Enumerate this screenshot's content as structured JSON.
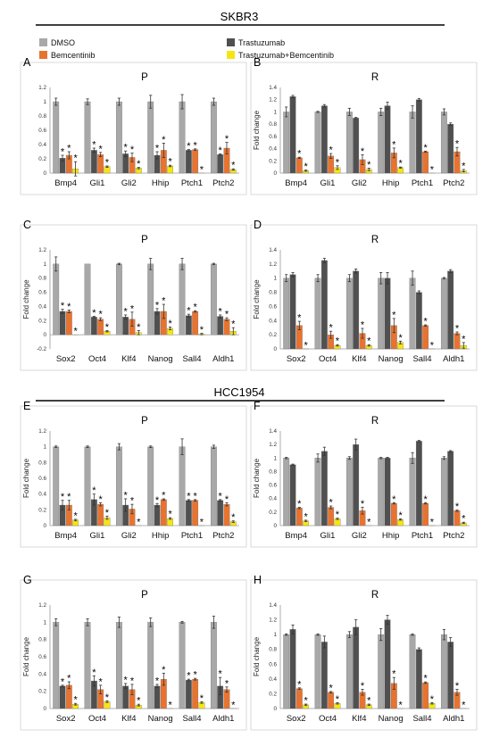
{
  "sections": [
    {
      "title": "SKBR3"
    },
    {
      "title": "HCC1954"
    }
  ],
  "legend": {
    "items": [
      {
        "label": "DMSO",
        "color": "#a8a8a8"
      },
      {
        "label": "Trastuzumab",
        "color": "#505050"
      },
      {
        "label": "Bemcentinib",
        "color": "#e8732f"
      },
      {
        "label": "Trastuzumab+Bemcentinib",
        "color": "#f5e612"
      }
    ]
  },
  "chart_data": [
    {
      "panel": "A",
      "title": "P",
      "type": "bar",
      "ylabel": "",
      "categories": [
        "Bmp4",
        "Gli1",
        "Gli2",
        "Hhip",
        "Ptch1",
        "Ptch2"
      ],
      "ylim": [
        0,
        1.2
      ],
      "yticks": [
        "0",
        "0.2",
        "0.4",
        "0.6",
        "0.8",
        "1",
        "1.2"
      ],
      "series": [
        {
          "name": "DMSO",
          "values": [
            1.0,
            1.0,
            1.0,
            1.0,
            1.0,
            1.0
          ]
        },
        {
          "name": "Trastuzumab",
          "values": [
            0.21,
            0.32,
            0.27,
            0.25,
            0.32,
            0.26
          ]
        },
        {
          "name": "Bemcentinib",
          "values": [
            0.25,
            0.26,
            0.22,
            0.32,
            0.33,
            0.35
          ]
        },
        {
          "name": "Trastuzumab+Bemcentinib",
          "values": [
            0.06,
            0.09,
            0.07,
            0.1,
            0.0,
            0.05
          ]
        }
      ],
      "errors": [
        [
          0.05,
          0.04,
          0.05,
          0.1
        ],
        [
          0.04,
          0.03,
          0.03,
          0.01
        ],
        [
          0.05,
          0.04,
          0.06,
          0.01
        ],
        [
          0.09,
          0.05,
          0.1,
          0.01
        ],
        [
          0.1,
          0.01,
          0.01,
          0.0
        ],
        [
          0.05,
          0.01,
          0.08,
          0.01
        ]
      ],
      "stars": [
        [
          false,
          true,
          true,
          true
        ],
        [
          false,
          true,
          true,
          true
        ],
        [
          false,
          true,
          true,
          true
        ],
        [
          false,
          true,
          true,
          true
        ],
        [
          false,
          true,
          true,
          true
        ],
        [
          false,
          true,
          true,
          true
        ]
      ]
    },
    {
      "panel": "B",
      "title": "R",
      "type": "bar",
      "ylabel": "Fold change",
      "categories": [
        "Bmp4",
        "Gli1",
        "Gli2",
        "Hhip",
        "Ptch1",
        "Ptch2"
      ],
      "ylim": [
        0,
        1.4
      ],
      "yticks": [
        "0",
        "0.2",
        "0.4",
        "0.6",
        "0.8",
        "1",
        "1.2",
        "1.4"
      ],
      "series": [
        {
          "name": "DMSO",
          "values": [
            1.0,
            1.0,
            1.0,
            1.0,
            1.0,
            1.0
          ]
        },
        {
          "name": "Trastuzumab",
          "values": [
            1.25,
            1.1,
            0.9,
            1.1,
            1.2,
            0.8
          ]
        },
        {
          "name": "Bemcentinib",
          "values": [
            0.25,
            0.28,
            0.22,
            0.33,
            0.35,
            0.35
          ]
        },
        {
          "name": "Trastuzumab+Bemcentinib",
          "values": [
            0.04,
            0.09,
            0.06,
            0.09,
            0.0,
            0.04
          ]
        }
      ],
      "errors": [
        [
          0.08,
          0.02,
          0.01,
          0.01
        ],
        [
          0.01,
          0.02,
          0.04,
          0.03
        ],
        [
          0.06,
          0.01,
          0.08,
          0.02
        ],
        [
          0.06,
          0.06,
          0.08,
          0.01
        ],
        [
          0.1,
          0.02,
          0.01,
          0.0
        ],
        [
          0.05,
          0.02,
          0.07,
          0.02
        ]
      ],
      "stars": [
        [
          false,
          false,
          true,
          true
        ],
        [
          false,
          false,
          true,
          true
        ],
        [
          false,
          false,
          true,
          true
        ],
        [
          false,
          false,
          true,
          true
        ],
        [
          false,
          false,
          true,
          true
        ],
        [
          false,
          false,
          true,
          true
        ]
      ]
    },
    {
      "panel": "C",
      "title": "P",
      "type": "bar",
      "ylabel": "Fold change",
      "categories": [
        "Sox2",
        "Oct4",
        "Klf4",
        "Nanog",
        "Sall4",
        "Aldh1"
      ],
      "ylim": [
        -0.2,
        1.2
      ],
      "yticks": [
        "-0.2",
        "0",
        "0.2",
        "0.4",
        "0.6",
        "0.8",
        "1",
        "1.2"
      ],
      "series": [
        {
          "name": "DMSO",
          "values": [
            1.0,
            1.0,
            1.0,
            1.0,
            1.0,
            1.0
          ]
        },
        {
          "name": "Trastuzumab",
          "values": [
            0.33,
            0.25,
            0.25,
            0.33,
            0.27,
            0.26
          ]
        },
        {
          "name": "Bemcentinib",
          "values": [
            0.33,
            0.22,
            0.22,
            0.33,
            0.33,
            0.22
          ]
        },
        {
          "name": "Trastuzumab+Bemcentinib",
          "values": [
            0.0,
            0.05,
            0.03,
            0.09,
            0.01,
            0.05
          ]
        }
      ],
      "errors": [
        [
          0.1,
          0.03,
          0.02,
          0.0
        ],
        [
          0.0,
          0.01,
          0.02,
          0.01
        ],
        [
          0.01,
          0.03,
          0.1,
          0.03
        ],
        [
          0.08,
          0.04,
          0.1,
          0.02
        ],
        [
          0.08,
          0.02,
          0.01,
          0.01
        ],
        [
          0.01,
          0.02,
          0.02,
          0.05
        ]
      ],
      "stars": [
        [
          false,
          true,
          true,
          true
        ],
        [
          false,
          true,
          true,
          true
        ],
        [
          false,
          true,
          true,
          true
        ],
        [
          false,
          true,
          true,
          true
        ],
        [
          false,
          true,
          true,
          true
        ],
        [
          false,
          true,
          true,
          true
        ]
      ]
    },
    {
      "panel": "D",
      "title": "R",
      "type": "bar",
      "ylabel": "Fold change",
      "categories": [
        "Sox2",
        "Oct4",
        "Klf4",
        "Nanog",
        "Sall4",
        "Aldh1"
      ],
      "ylim": [
        0,
        1.4
      ],
      "yticks": [
        "0",
        "0.2",
        "0.4",
        "0.6",
        "0.8",
        "1",
        "1.2",
        "1.4"
      ],
      "series": [
        {
          "name": "DMSO",
          "values": [
            1.0,
            1.0,
            1.0,
            1.0,
            1.0,
            1.0
          ]
        },
        {
          "name": "Trastuzumab",
          "values": [
            1.05,
            1.25,
            1.1,
            1.0,
            0.8,
            1.1
          ]
        },
        {
          "name": "Bemcentinib",
          "values": [
            0.33,
            0.2,
            0.22,
            0.33,
            0.33,
            0.22
          ]
        },
        {
          "name": "Trastuzumab+Bemcentinib",
          "values": [
            0.0,
            0.05,
            0.05,
            0.09,
            0.0,
            0.05
          ]
        }
      ],
      "errors": [
        [
          0.05,
          0.03,
          0.06,
          0.0
        ],
        [
          0.05,
          0.03,
          0.05,
          0.01
        ],
        [
          0.05,
          0.03,
          0.07,
          0.01
        ],
        [
          0.08,
          0.08,
          0.1,
          0.02
        ],
        [
          0.1,
          0.02,
          0.01,
          0.0
        ],
        [
          0.01,
          0.02,
          0.02,
          0.04
        ]
      ],
      "stars": [
        [
          false,
          false,
          true,
          true
        ],
        [
          false,
          false,
          true,
          true
        ],
        [
          false,
          false,
          true,
          true
        ],
        [
          false,
          false,
          true,
          true
        ],
        [
          false,
          false,
          true,
          true
        ],
        [
          false,
          false,
          true,
          true
        ]
      ]
    },
    {
      "panel": "E",
      "title": "P",
      "type": "bar",
      "ylabel": "Fold change",
      "categories": [
        "Bmp4",
        "Gli1",
        "Gli2",
        "Hhip",
        "Ptch1",
        "Ptch2"
      ],
      "ylim": [
        0,
        1.2
      ],
      "yticks": [
        "0",
        "0.2",
        "0.4",
        "0.6",
        "0.8",
        "1",
        "1.2"
      ],
      "series": [
        {
          "name": "DMSO",
          "values": [
            1.0,
            1.0,
            1.0,
            1.0,
            1.0,
            1.0
          ]
        },
        {
          "name": "Trastuzumab",
          "values": [
            0.26,
            0.33,
            0.26,
            0.26,
            0.32,
            0.32
          ]
        },
        {
          "name": "Bemcentinib",
          "values": [
            0.26,
            0.27,
            0.21,
            0.33,
            0.32,
            0.27
          ]
        },
        {
          "name": "Trastuzumab+Bemcentinib",
          "values": [
            0.07,
            0.1,
            0.0,
            0.09,
            0.0,
            0.05
          ]
        }
      ],
      "errors": [
        [
          0.01,
          0.06,
          0.06,
          0.01
        ],
        [
          0.01,
          0.07,
          0.02,
          0.02
        ],
        [
          0.04,
          0.08,
          0.06,
          0.0
        ],
        [
          0.01,
          0.02,
          0.01,
          0.01
        ],
        [
          0.1,
          0.01,
          0.01,
          0.0
        ],
        [
          0.02,
          0.01,
          0.02,
          0.01
        ]
      ],
      "stars": [
        [
          false,
          true,
          true,
          true
        ],
        [
          false,
          true,
          true,
          true
        ],
        [
          false,
          true,
          true,
          true
        ],
        [
          false,
          true,
          true,
          true
        ],
        [
          false,
          true,
          true,
          true
        ],
        [
          false,
          true,
          true,
          true
        ]
      ]
    },
    {
      "panel": "F",
      "title": "R",
      "type": "bar",
      "ylabel": "Fold change",
      "categories": [
        "Bmp4",
        "Gli1",
        "Gli2",
        "Hhip",
        "Ptch1",
        "Ptch2"
      ],
      "ylim": [
        0,
        1.4
      ],
      "yticks": [
        "0",
        "0.2",
        "0.4",
        "0.6",
        "0.8",
        "1",
        "1.2",
        "1.4"
      ],
      "series": [
        {
          "name": "DMSO",
          "values": [
            1.0,
            1.0,
            1.0,
            1.0,
            1.0,
            1.0
          ]
        },
        {
          "name": "Trastuzumab",
          "values": [
            0.9,
            1.1,
            1.2,
            1.0,
            1.25,
            1.1
          ]
        },
        {
          "name": "Bemcentinib",
          "values": [
            0.26,
            0.27,
            0.22,
            0.33,
            0.33,
            0.22
          ]
        },
        {
          "name": "Trastuzumab+Bemcentinib",
          "values": [
            0.07,
            0.1,
            0.0,
            0.09,
            0.0,
            0.04
          ]
        }
      ],
      "errors": [
        [
          0.01,
          0.01,
          0.01,
          0.01
        ],
        [
          0.06,
          0.06,
          0.02,
          0.01
        ],
        [
          0.02,
          0.08,
          0.05,
          0.0
        ],
        [
          0.01,
          0.01,
          0.01,
          0.01
        ],
        [
          0.08,
          0.01,
          0.01,
          0.0
        ],
        [
          0.02,
          0.01,
          0.01,
          0.01
        ]
      ],
      "stars": [
        [
          false,
          false,
          true,
          true
        ],
        [
          false,
          false,
          true,
          true
        ],
        [
          false,
          false,
          true,
          true
        ],
        [
          false,
          false,
          true,
          true
        ],
        [
          false,
          false,
          true,
          true
        ],
        [
          false,
          false,
          true,
          true
        ]
      ]
    },
    {
      "panel": "G",
      "title": "P",
      "type": "bar",
      "ylabel": "Fold change",
      "categories": [
        "Sox2",
        "Oct4",
        "Klf4",
        "Nanog",
        "Sall4",
        "Aldh1"
      ],
      "ylim": [
        0,
        1.2
      ],
      "yticks": [
        "0",
        "0.2",
        "0.4",
        "0.6",
        "0.8",
        "1",
        "1.2"
      ],
      "series": [
        {
          "name": "DMSO",
          "values": [
            1.0,
            1.0,
            1.0,
            1.0,
            1.0,
            1.0
          ]
        },
        {
          "name": "Trastuzumab",
          "values": [
            0.26,
            0.32,
            0.26,
            0.26,
            0.33,
            0.26
          ]
        },
        {
          "name": "Bemcentinib",
          "values": [
            0.27,
            0.22,
            0.22,
            0.34,
            0.34,
            0.22
          ]
        },
        {
          "name": "Trastuzumab+Bemcentinib",
          "values": [
            0.05,
            0.08,
            0.04,
            0.0,
            0.07,
            0.0
          ]
        }
      ],
      "errors": [
        [
          0.04,
          0.01,
          0.04,
          0.01
        ],
        [
          0.04,
          0.06,
          0.05,
          0.01
        ],
        [
          0.06,
          0.03,
          0.06,
          0.01
        ],
        [
          0.05,
          0.02,
          0.07,
          0.0
        ],
        [
          0.01,
          0.01,
          0.01,
          0.01
        ],
        [
          0.07,
          0.1,
          0.03,
          0.0
        ]
      ],
      "stars": [
        [
          false,
          true,
          true,
          true
        ],
        [
          false,
          true,
          true,
          true
        ],
        [
          false,
          true,
          true,
          true
        ],
        [
          false,
          true,
          true,
          true
        ],
        [
          false,
          true,
          true,
          true
        ],
        [
          false,
          true,
          true,
          true
        ]
      ]
    },
    {
      "panel": "H",
      "title": "R",
      "type": "bar",
      "ylabel": "Fold change",
      "categories": [
        "Sox2",
        "Oct4",
        "Klf4",
        "Nanog",
        "Sall4",
        "Aldh1"
      ],
      "ylim": [
        0,
        1.4
      ],
      "yticks": [
        "0",
        "0.2",
        "0.4",
        "0.6",
        "0.8",
        "1",
        "1.2",
        "1.4"
      ],
      "series": [
        {
          "name": "DMSO",
          "values": [
            1.0,
            1.0,
            1.0,
            1.0,
            1.0,
            1.0
          ]
        },
        {
          "name": "Trastuzumab",
          "values": [
            1.07,
            0.9,
            1.1,
            1.2,
            0.8,
            0.9
          ]
        },
        {
          "name": "Bemcentinib",
          "values": [
            0.27,
            0.22,
            0.22,
            0.34,
            0.35,
            0.22
          ]
        },
        {
          "name": "Trastuzumab+Bemcentinib",
          "values": [
            0.05,
            0.07,
            0.05,
            0.0,
            0.07,
            0.0
          ]
        }
      ],
      "errors": [
        [
          0.01,
          0.06,
          0.01,
          0.01
        ],
        [
          0.01,
          0.08,
          0.01,
          0.01
        ],
        [
          0.04,
          0.1,
          0.04,
          0.01
        ],
        [
          0.08,
          0.06,
          0.08,
          0.0
        ],
        [
          0.01,
          0.02,
          0.01,
          0.01
        ],
        [
          0.07,
          0.06,
          0.04,
          0.0
        ]
      ],
      "stars": [
        [
          false,
          false,
          true,
          true
        ],
        [
          false,
          false,
          true,
          true
        ],
        [
          false,
          false,
          true,
          true
        ],
        [
          false,
          false,
          true,
          true
        ],
        [
          false,
          false,
          true,
          true
        ],
        [
          false,
          false,
          true,
          true
        ]
      ]
    }
  ]
}
